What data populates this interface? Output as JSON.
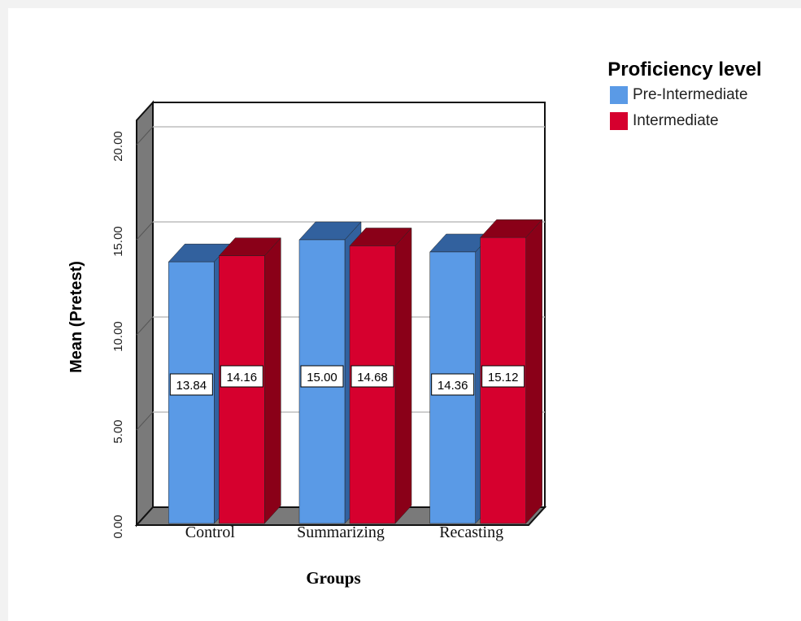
{
  "chart_data": {
    "type": "bar",
    "style": "3d-clustered",
    "categories": [
      "Control",
      "Summarizing",
      "Recasting"
    ],
    "series": [
      {
        "name": "Pre-Intermediate",
        "values": [
          13.84,
          15.0,
          14.36
        ],
        "labels": [
          "13.84",
          "15.00",
          "14.36"
        ],
        "color": "#5a9ae6",
        "dark": "#32619e"
      },
      {
        "name": "Intermediate",
        "values": [
          14.16,
          14.68,
          15.12
        ],
        "labels": [
          "14.16",
          "14.68",
          "15.12"
        ],
        "color": "#d6002e",
        "dark": "#8a0018"
      }
    ],
    "ylabel": "Mean (Pretest)",
    "xlabel": "Groups",
    "ylim": [
      0,
      20
    ],
    "yticks": [
      "0.00",
      "5.00",
      "10.00",
      "15.00",
      "20.00"
    ],
    "ytick_values": [
      0,
      5,
      10,
      15,
      20
    ],
    "grid": true,
    "legend_title": "Proficiency level",
    "legend_placement": "top-right"
  }
}
